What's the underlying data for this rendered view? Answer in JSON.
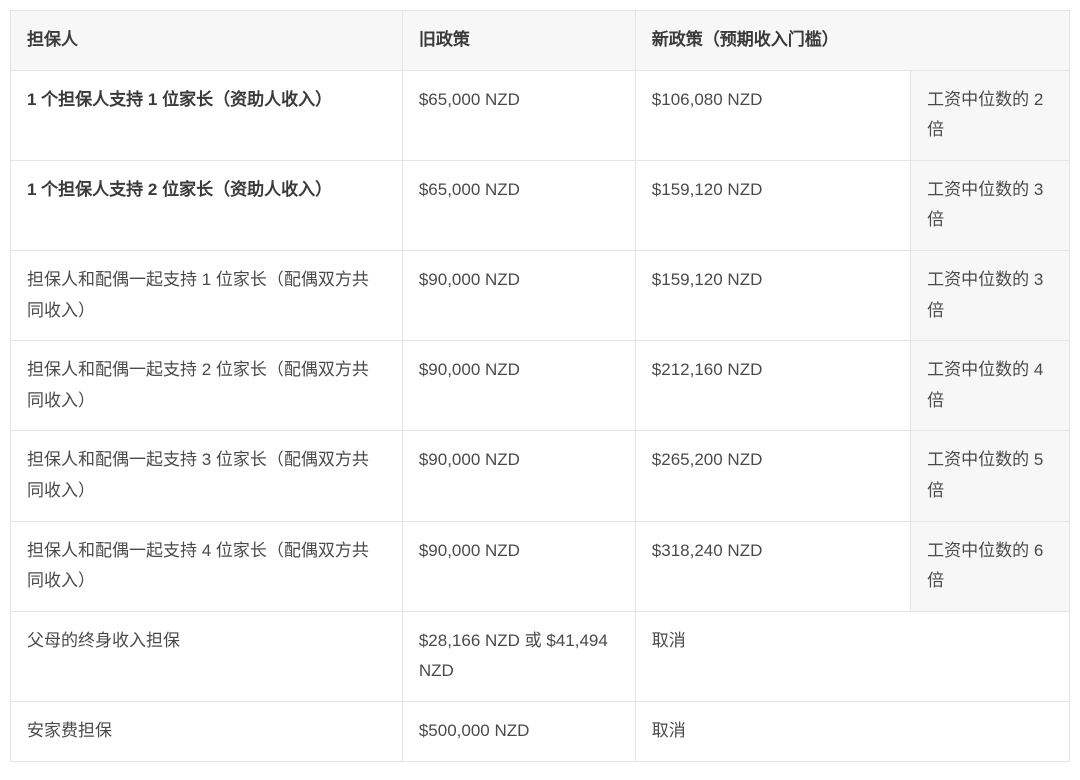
{
  "table": {
    "headers": {
      "sponsor": "担保人",
      "old_policy": "旧政策",
      "new_policy": "新政策（预期收入门槛）"
    },
    "rows": [
      {
        "sponsor": "1 个担保人支持 1 位家长（资助人收入）",
        "old_policy": "$65,000 NZD",
        "new_policy": "$106,080 NZD",
        "multiplier": "工资中位数的 2 倍",
        "has_multiplier": true
      },
      {
        "sponsor": "1 个担保人支持 2 位家长（资助人收入）",
        "old_policy": "$65,000 NZD",
        "new_policy": "$159,120 NZD",
        "multiplier": "工资中位数的 3 倍",
        "has_multiplier": true
      },
      {
        "sponsor": "担保人和配偶一起支持 1 位家长（配偶双方共同收入）",
        "old_policy": "$90,000 NZD",
        "new_policy": "$159,120 NZD",
        "multiplier": "工资中位数的 3 倍",
        "has_multiplier": true
      },
      {
        "sponsor": "担保人和配偶一起支持 2 位家长（配偶双方共同收入）",
        "old_policy": "$90,000 NZD",
        "new_policy": "$212,160 NZD",
        "multiplier": "工资中位数的 4 倍",
        "has_multiplier": true
      },
      {
        "sponsor": "担保人和配偶一起支持 3 位家长（配偶双方共同收入）",
        "old_policy": "$90,000 NZD",
        "new_policy": "$265,200 NZD",
        "multiplier": "工资中位数的 5 倍",
        "has_multiplier": true
      },
      {
        "sponsor": "担保人和配偶一起支持 4 位家长（配偶双方共同收入）",
        "old_policy": "$90,000 NZD",
        "new_policy": "$318,240 NZD",
        "multiplier": "工资中位数的 6 倍",
        "has_multiplier": true
      },
      {
        "sponsor": "父母的终身收入担保",
        "old_policy": "$28,166 NZD  或 $41,494 NZD",
        "new_policy": "取消",
        "multiplier": "",
        "has_multiplier": false
      },
      {
        "sponsor": "安家费担保",
        "old_policy": "$500,000 NZD",
        "new_policy": "取消",
        "multiplier": "",
        "has_multiplier": false
      }
    ],
    "styling": {
      "border_color": "#e5e5e5",
      "header_bg": "#f7f7f7",
      "multiplier_bg": "#f7f7f7",
      "text_color": "#4a4a4a",
      "font_size": 17,
      "background_color": "#ffffff"
    }
  }
}
